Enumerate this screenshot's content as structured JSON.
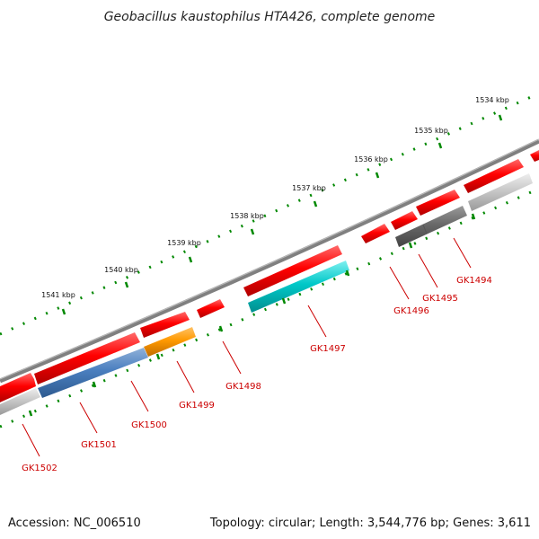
{
  "title": "Geobacillus kaustophilus HTA426, complete genome",
  "footer": {
    "accession": "Accession: NC_006510",
    "summary": "Topology: circular; Length: 3,544,776 bp; Genes: 3,611"
  },
  "scale_labels": [
    "1534 kbp",
    "1535 kbp",
    "1536 kbp",
    "1537 kbp",
    "1538 kbp",
    "1539 kbp",
    "1540 kbp",
    "1541 kbp"
  ],
  "gene_labels": [
    "GK1494",
    "GK1495",
    "GK1496",
    "GK1497",
    "GK1498",
    "GK1499",
    "GK1500",
    "GK1501",
    "GK1502"
  ],
  "colors": {
    "backbone": "#808080",
    "gene_red": "#ff0000",
    "gene_label": "#cc0000",
    "tick_green": "#008800",
    "gk1494": "#c8c8c8",
    "gk1495": "#696969",
    "gk1497": "#00c8c8",
    "gk1499": "#ff9900",
    "gk1501": "#4a7fbf",
    "gk1502": "#c8c8c8"
  }
}
